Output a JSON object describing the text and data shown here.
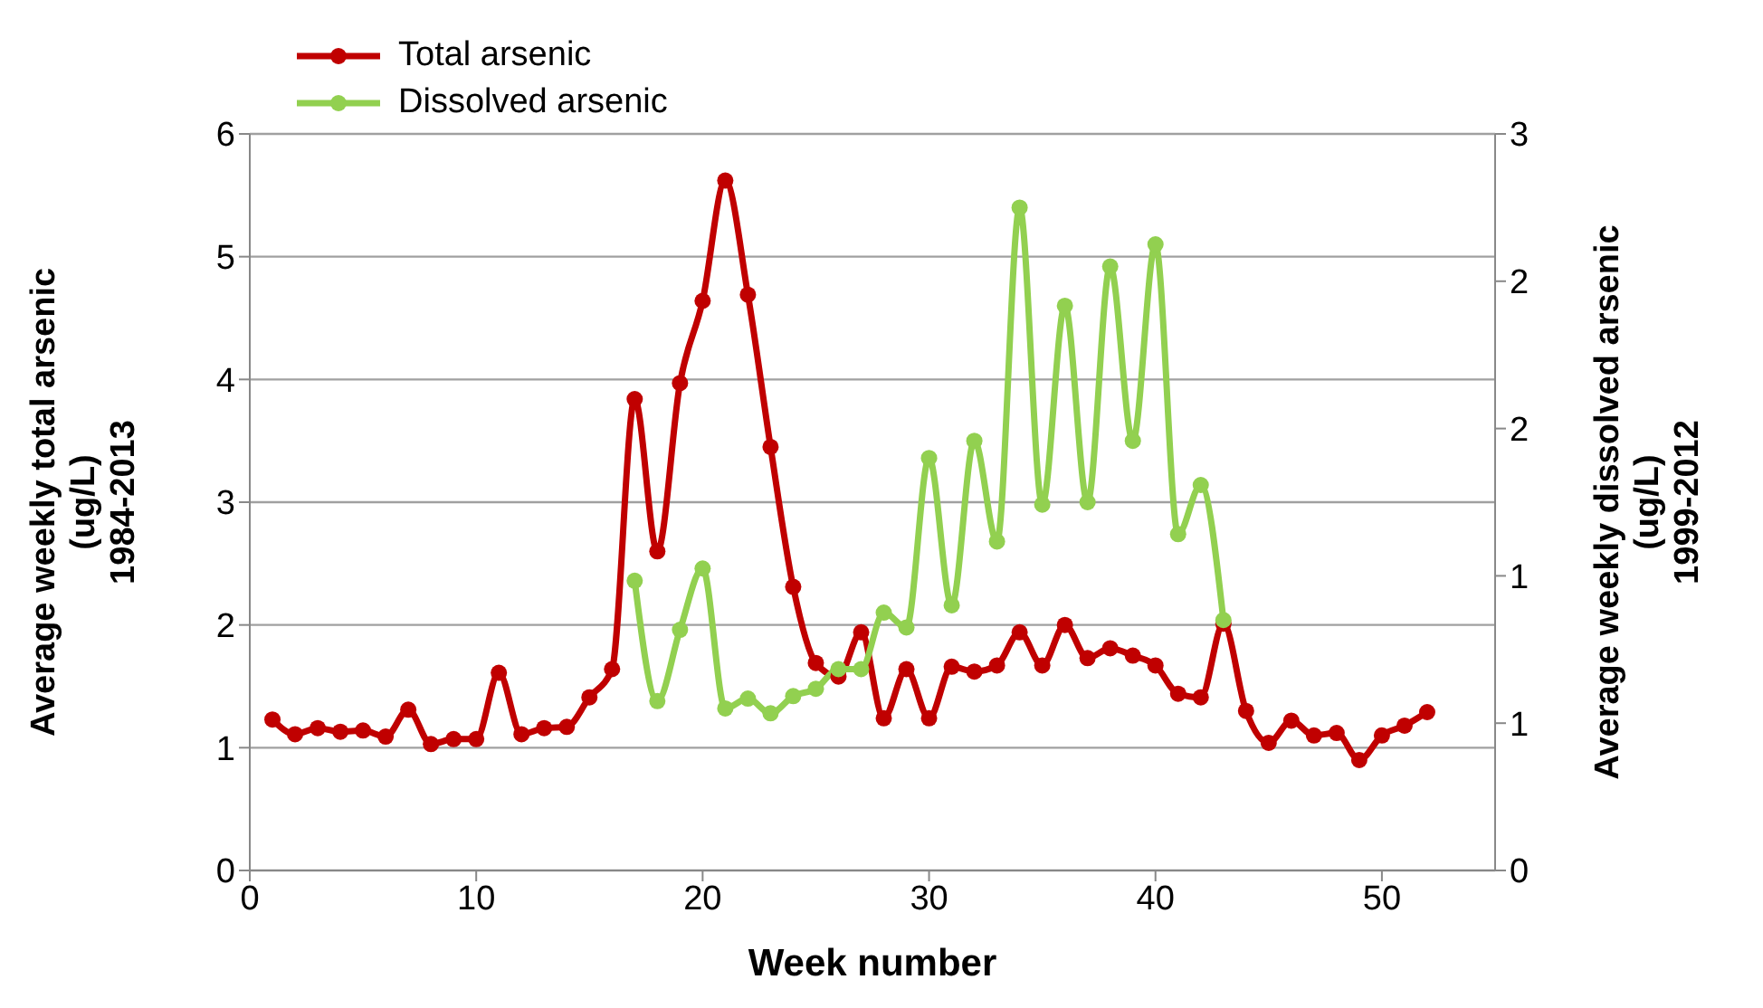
{
  "chart_data": {
    "type": "line",
    "xlabel": "Week number",
    "ylabel": "Average weekly  total arsenic\n(ug/L)\n1984-2013",
    "y2label": "Average weekly dissolved arsenic\n(ug/L)\n1999-2012",
    "x": [
      1,
      2,
      3,
      4,
      5,
      6,
      7,
      8,
      9,
      10,
      11,
      12,
      13,
      14,
      15,
      16,
      17,
      18,
      19,
      20,
      21,
      22,
      23,
      24,
      25,
      26,
      27,
      28,
      29,
      30,
      31,
      32,
      33,
      34,
      35,
      36,
      37,
      38,
      39,
      40,
      41,
      42,
      43,
      44,
      45,
      46,
      47,
      48,
      49,
      50,
      51,
      52
    ],
    "series": [
      {
        "name": "Total arsenic",
        "color": "#c00000",
        "values": [
          1.23,
          1.11,
          1.16,
          1.13,
          1.14,
          1.09,
          1.31,
          1.03,
          1.07,
          1.07,
          1.61,
          1.11,
          1.16,
          1.17,
          1.41,
          1.64,
          3.84,
          2.6,
          3.97,
          4.64,
          5.62,
          4.69,
          3.45,
          2.31,
          1.69,
          1.58,
          1.94,
          1.24,
          1.64,
          1.24,
          1.66,
          1.62,
          1.67,
          1.94,
          1.67,
          2.0,
          1.73,
          1.81,
          1.75,
          1.67,
          1.44,
          1.41,
          2.01,
          1.3,
          1.04,
          1.22,
          1.1,
          1.12,
          0.9,
          1.1,
          1.18,
          1.29
        ]
      },
      {
        "name": "Dissolved arsenic",
        "color": "#92d050",
        "axis": "y2",
        "values": [
          null,
          null,
          null,
          null,
          null,
          null,
          null,
          null,
          null,
          null,
          null,
          null,
          null,
          null,
          null,
          null,
          1.18,
          0.69,
          0.98,
          1.23,
          0.66,
          0.7,
          0.64,
          0.71,
          0.74,
          0.82,
          0.82,
          1.05,
          0.99,
          1.68,
          1.08,
          1.75,
          1.34,
          2.7,
          1.49,
          2.3,
          1.5,
          2.46,
          1.75,
          2.55,
          1.37,
          1.57,
          1.02,
          null,
          null,
          null,
          null,
          null,
          null,
          null,
          null,
          null
        ]
      }
    ],
    "xlim": [
      0,
      55
    ],
    "xticks": [
      0,
      10,
      20,
      30,
      40,
      50
    ],
    "ylim": [
      0,
      6
    ],
    "yticks": [
      0,
      1,
      2,
      3,
      4,
      5,
      6
    ],
    "y2lim": [
      0,
      3
    ],
    "y2ticks": [
      0,
      {
        "value": 0.6,
        "label": "1"
      },
      {
        "value": 1.2,
        "label": "1"
      },
      {
        "value": 1.8,
        "label": "2"
      },
      {
        "value": 2.4,
        "label": "2"
      },
      3
    ],
    "grid": "y",
    "legend": "top left",
    "marker": "circle",
    "line_style": "solid"
  }
}
